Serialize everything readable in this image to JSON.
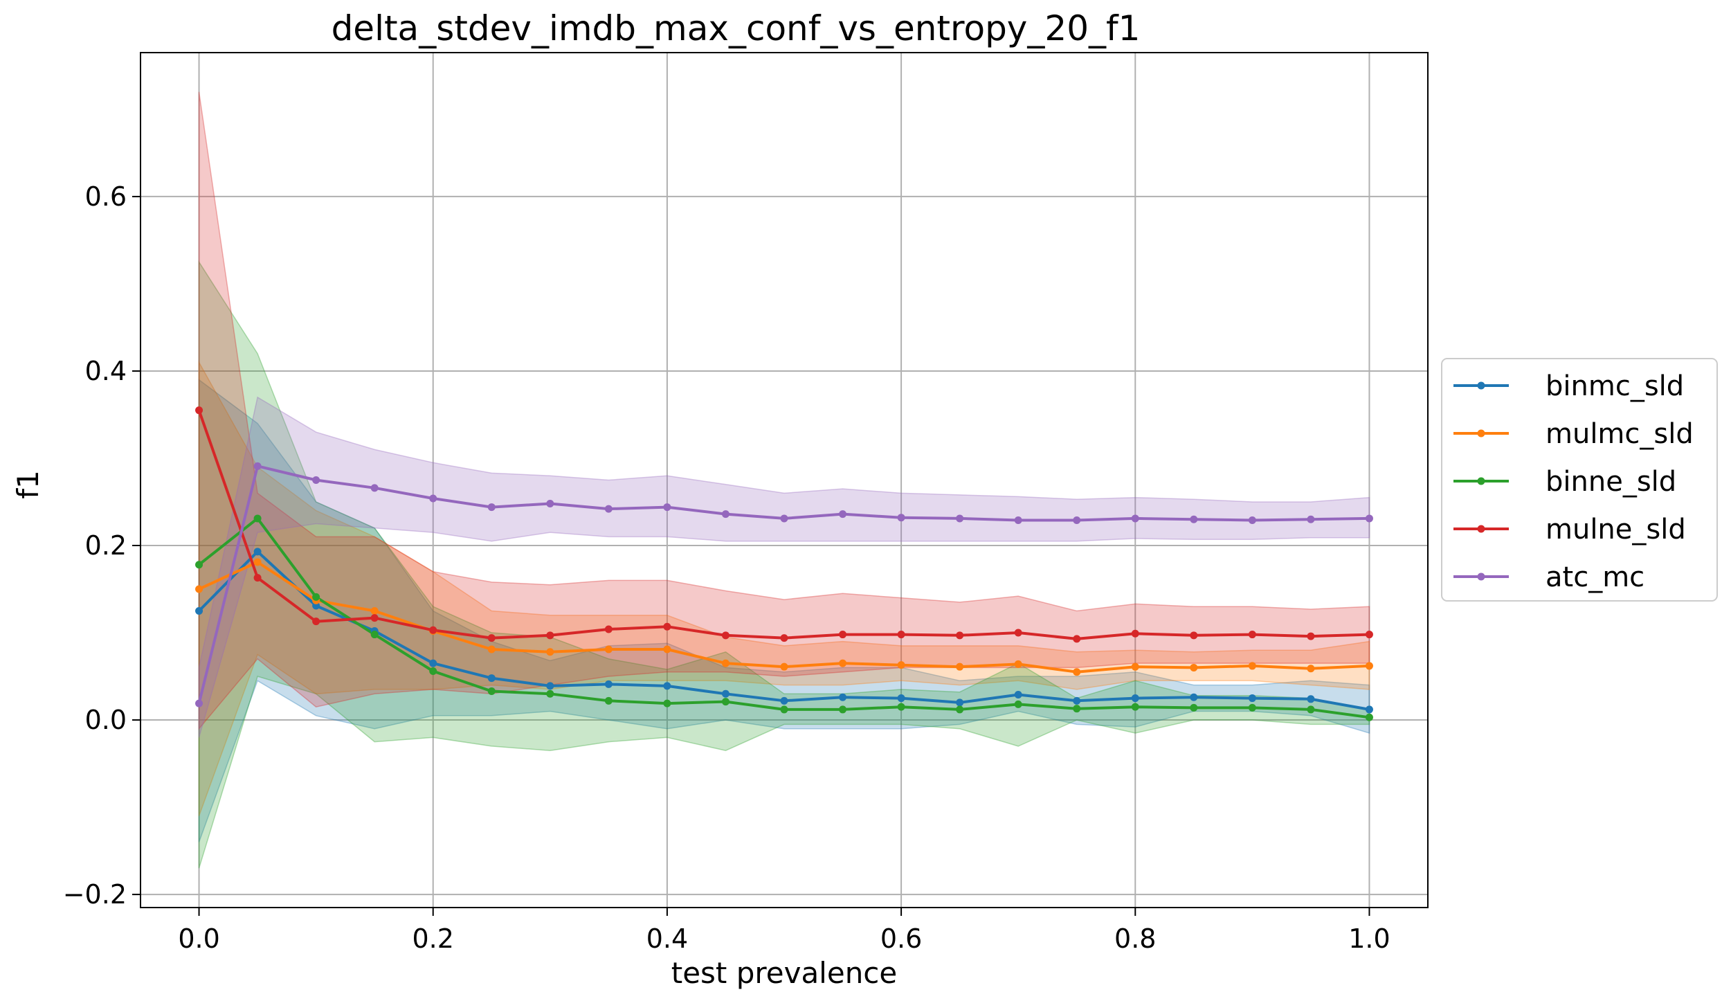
{
  "chart_data": {
    "type": "line",
    "title": "delta_stdev_imdb_max_conf_vs_entropy_20_f1",
    "xlabel": "test prevalence",
    "ylabel": "f1",
    "xlim": [
      -0.05,
      1.05
    ],
    "ylim": [
      -0.215,
      0.765
    ],
    "xticks": [
      0.0,
      0.2,
      0.4,
      0.6,
      0.8,
      1.0
    ],
    "xtick_labels": [
      "0.0",
      "0.2",
      "0.4",
      "0.6",
      "0.8",
      "1.0"
    ],
    "yticks": [
      -0.2,
      0.0,
      0.2,
      0.4,
      0.6
    ],
    "ytick_labels": [
      "−0.2",
      "0.0",
      "0.2",
      "0.4",
      "0.6"
    ],
    "grid": true,
    "legend_position": "right-outside",
    "x": [
      0.0,
      0.05,
      0.1,
      0.15,
      0.2,
      0.25,
      0.3,
      0.35,
      0.4,
      0.45,
      0.5,
      0.55,
      0.6,
      0.65,
      0.7,
      0.75,
      0.8,
      0.85,
      0.9,
      0.95,
      1.0
    ],
    "series": [
      {
        "name": "binmc_sld",
        "color": "#1f77b4",
        "values": [
          0.125,
          0.193,
          0.131,
          0.102,
          0.065,
          0.048,
          0.039,
          0.041,
          0.039,
          0.03,
          0.022,
          0.026,
          0.025,
          0.02,
          0.029,
          0.022,
          0.025,
          0.026,
          0.025,
          0.024,
          0.012
        ],
        "lower": [
          -0.14,
          0.045,
          0.005,
          -0.01,
          0.005,
          0.005,
          0.01,
          0.0,
          -0.01,
          0.0,
          -0.01,
          -0.01,
          -0.01,
          -0.005,
          0.01,
          -0.005,
          -0.008,
          0.01,
          0.01,
          0.005,
          -0.015
        ],
        "upper": [
          0.39,
          0.34,
          0.25,
          0.22,
          0.125,
          0.09,
          0.068,
          0.085,
          0.088,
          0.06,
          0.055,
          0.06,
          0.06,
          0.045,
          0.05,
          0.05,
          0.055,
          0.04,
          0.04,
          0.045,
          0.04
        ]
      },
      {
        "name": "mulmc_sld",
        "color": "#ff7f0e",
        "values": [
          0.15,
          0.181,
          0.137,
          0.125,
          0.102,
          0.081,
          0.078,
          0.081,
          0.081,
          0.065,
          0.061,
          0.065,
          0.063,
          0.061,
          0.064,
          0.055,
          0.061,
          0.06,
          0.062,
          0.059,
          0.062
        ],
        "lower": [
          -0.11,
          0.075,
          0.03,
          0.035,
          0.035,
          0.04,
          0.035,
          0.045,
          0.045,
          0.045,
          0.04,
          0.04,
          0.045,
          0.04,
          0.045,
          0.035,
          0.045,
          0.045,
          0.045,
          0.04,
          0.035
        ],
        "upper": [
          0.41,
          0.29,
          0.24,
          0.21,
          0.17,
          0.125,
          0.12,
          0.12,
          0.12,
          0.095,
          0.085,
          0.09,
          0.085,
          0.085,
          0.085,
          0.078,
          0.08,
          0.078,
          0.08,
          0.08,
          0.09
        ]
      },
      {
        "name": "binne_sld",
        "color": "#2ca02c",
        "values": [
          0.178,
          0.231,
          0.141,
          0.098,
          0.056,
          0.033,
          0.03,
          0.022,
          0.019,
          0.021,
          0.012,
          0.012,
          0.015,
          0.012,
          0.018,
          0.013,
          0.015,
          0.014,
          0.014,
          0.012,
          0.003
        ],
        "lower": [
          -0.17,
          0.05,
          0.03,
          -0.025,
          -0.02,
          -0.03,
          -0.035,
          -0.025,
          -0.02,
          -0.035,
          -0.005,
          -0.005,
          -0.005,
          -0.01,
          -0.03,
          0.0,
          -0.015,
          0.0,
          0.0,
          -0.005,
          -0.005
        ],
        "upper": [
          0.525,
          0.42,
          0.25,
          0.22,
          0.13,
          0.1,
          0.095,
          0.07,
          0.058,
          0.078,
          0.03,
          0.03,
          0.035,
          0.032,
          0.065,
          0.025,
          0.045,
          0.028,
          0.028,
          0.025,
          0.012
        ]
      },
      {
        "name": "mulne_sld",
        "color": "#d62728",
        "values": [
          0.355,
          0.163,
          0.113,
          0.117,
          0.103,
          0.094,
          0.097,
          0.104,
          0.107,
          0.097,
          0.094,
          0.098,
          0.098,
          0.097,
          0.1,
          0.093,
          0.099,
          0.097,
          0.098,
          0.096,
          0.098
        ],
        "lower": [
          -0.01,
          0.07,
          0.015,
          0.03,
          0.035,
          0.03,
          0.04,
          0.05,
          0.055,
          0.055,
          0.05,
          0.055,
          0.06,
          0.06,
          0.06,
          0.06,
          0.065,
          0.065,
          0.065,
          0.065,
          0.065
        ],
        "upper": [
          0.72,
          0.26,
          0.21,
          0.21,
          0.17,
          0.158,
          0.155,
          0.16,
          0.16,
          0.148,
          0.138,
          0.145,
          0.14,
          0.135,
          0.142,
          0.125,
          0.133,
          0.13,
          0.13,
          0.127,
          0.13
        ]
      },
      {
        "name": "atc_mc",
        "color": "#9467bd",
        "values": [
          0.019,
          0.291,
          0.275,
          0.266,
          0.254,
          0.244,
          0.248,
          0.242,
          0.244,
          0.236,
          0.231,
          0.236,
          0.232,
          0.231,
          0.229,
          0.229,
          0.231,
          0.23,
          0.229,
          0.23,
          0.231
        ],
        "lower": [
          -0.02,
          0.215,
          0.225,
          0.22,
          0.215,
          0.205,
          0.215,
          0.21,
          0.21,
          0.205,
          0.205,
          0.205,
          0.205,
          0.205,
          0.205,
          0.205,
          0.208,
          0.207,
          0.207,
          0.209,
          0.209
        ],
        "upper": [
          0.06,
          0.37,
          0.33,
          0.31,
          0.295,
          0.283,
          0.28,
          0.275,
          0.28,
          0.27,
          0.26,
          0.265,
          0.26,
          0.258,
          0.256,
          0.253,
          0.255,
          0.253,
          0.25,
          0.25,
          0.255
        ]
      }
    ]
  }
}
